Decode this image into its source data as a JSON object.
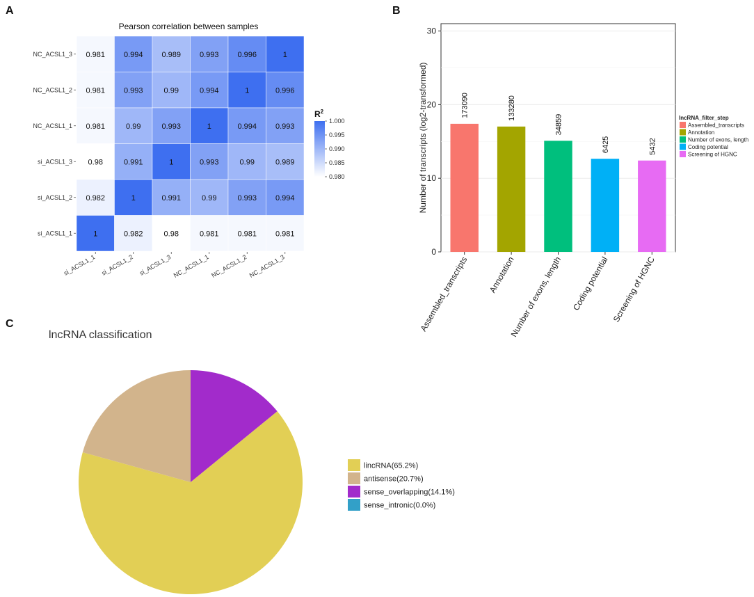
{
  "panel_labels": [
    "A",
    "B",
    "C"
  ],
  "chart_data": [
    {
      "type": "heatmap",
      "title": "Pearson correlation between samples",
      "x_labels": [
        "si_ACSL1_1",
        "si_ACSL1_2",
        "si_ACSL1_3",
        "NC_ACSL1_1",
        "NC_ACSL1_2",
        "NC_ACSL1_3"
      ],
      "y_labels": [
        "NC_ACSL1_3",
        "NC_ACSL1_2",
        "NC_ACSL1_1",
        "si_ACSL1_3",
        "si_ACSL1_2",
        "si_ACSL1_1"
      ],
      "cells": [
        [
          "0.981",
          "0.994",
          "0.989",
          "0.993",
          "0.996",
          "1"
        ],
        [
          "0.981",
          "0.993",
          "0.99",
          "0.994",
          "1",
          "0.996"
        ],
        [
          "0.981",
          "0.99",
          "0.993",
          "1",
          "0.994",
          "0.993"
        ],
        [
          "0.98",
          "0.991",
          "1",
          "0.993",
          "0.99",
          "0.989"
        ],
        [
          "0.982",
          "1",
          "0.991",
          "0.99",
          "0.993",
          "0.994"
        ],
        [
          "1",
          "0.982",
          "0.98",
          "0.981",
          "0.981",
          "0.981"
        ]
      ],
      "colorbar": {
        "title": "R",
        "title_sup": "2",
        "ticks": [
          "1.000",
          "0.995",
          "0.990",
          "0.985",
          "0.980"
        ],
        "range": [
          0.98,
          1.0
        ],
        "low_color": "#ffffff",
        "high_color": "#3e6ff0"
      }
    },
    {
      "type": "bar",
      "ylabel": "Number of transcripts (log2-transformed)",
      "xlabel": "",
      "ylim": [
        0,
        31
      ],
      "yticks": [
        0,
        10,
        20,
        30
      ],
      "categories": [
        "Assembled_transcripts",
        "Annotation",
        "Number of exons, length",
        "Coding potential",
        "Screening of HGNC"
      ],
      "counts": [
        173090,
        133280,
        34859,
        6425,
        5432
      ],
      "count_labels": [
        "173090",
        "133280",
        "34859",
        "6425",
        "5432"
      ],
      "colors": [
        "#f8766d",
        "#a3a500",
        "#00bf7d",
        "#00b0f6",
        "#e76bf3"
      ],
      "legend_title": "lncRNA_filter_step",
      "legend_position": "right"
    },
    {
      "type": "pie",
      "title": "lncRNA classification",
      "labels": [
        "lincRNA(65.2%)",
        "antisense(20.7%)",
        "sense_overlapping(14.1%)",
        "sense_intronic(0.0%)"
      ],
      "values": [
        65.2,
        20.7,
        14.1,
        0.0
      ],
      "colors": [
        "#e2cf55",
        "#d2b48c",
        "#a22bcb",
        "#32a0c8"
      ],
      "legend_position": "right"
    }
  ]
}
